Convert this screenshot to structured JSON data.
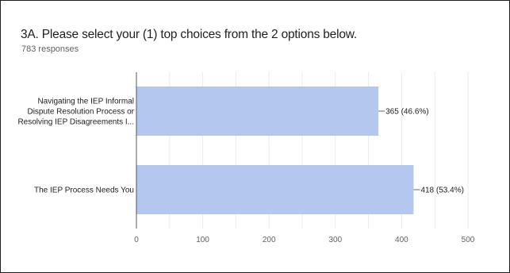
{
  "question": {
    "title": "3A. Please select your (1) top choices from the 2 options below.",
    "responses": "783 responses"
  },
  "colors": {
    "bar": "#b4c7ee",
    "axis": "#555555",
    "grid": "#ebebeb",
    "text": "#202124",
    "muted": "#5f6368",
    "frame": "#1f1f1f"
  },
  "chart_data": {
    "type": "bar",
    "orientation": "horizontal",
    "categories": [
      [
        "Navigating the IEP Informal",
        "Dispute Resolution Process or",
        "Resolving IEP Disagreements I..."
      ],
      [
        "The IEP Process Needs You"
      ]
    ],
    "values": [
      365,
      418
    ],
    "value_labels": [
      "365 (46.6%)",
      "418 (53.4%)"
    ],
    "xlim": [
      0,
      500
    ],
    "xticks": [
      0,
      100,
      200,
      300,
      400,
      500
    ],
    "xtick_labels": [
      "0",
      "100",
      "200",
      "300",
      "400",
      "500"
    ],
    "grid": true,
    "title": "",
    "xlabel": "",
    "ylabel": ""
  }
}
